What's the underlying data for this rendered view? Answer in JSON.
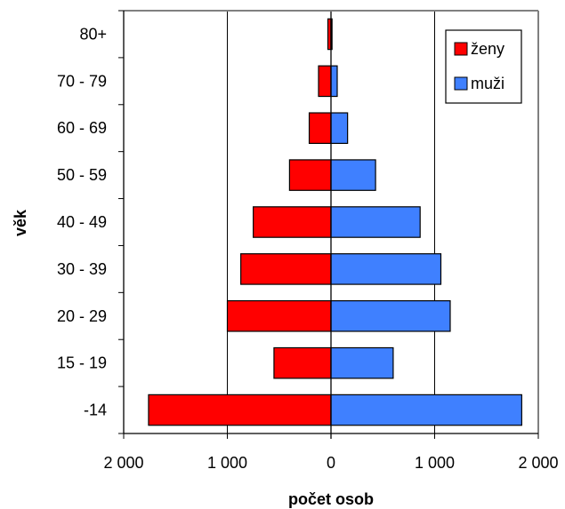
{
  "chart_data": {
    "type": "bar",
    "orientation": "horizontal",
    "subtype": "population-pyramid",
    "categories": [
      "-14",
      "15 - 19",
      "20 - 29",
      "30 - 39",
      "40 - 49",
      "50 - 59",
      "60 - 69",
      "70 - 79",
      "80+"
    ],
    "series": [
      {
        "name": "ženy",
        "color": "#ff0000",
        "side": "left",
        "values": [
          1760,
          550,
          1000,
          870,
          750,
          400,
          210,
          120,
          30
        ]
      },
      {
        "name": "muži",
        "color": "#3f80ff",
        "side": "right",
        "values": [
          1840,
          600,
          1150,
          1060,
          860,
          430,
          160,
          60,
          10
        ]
      }
    ],
    "x_ticks": [
      "2 000",
      "1 000",
      "0",
      "1 000",
      "2 000"
    ],
    "xlim": [
      -2000,
      2000
    ],
    "xlabel": "počet osob",
    "ylabel": "věk",
    "grid": "vertical",
    "legend_position": "top-right"
  }
}
